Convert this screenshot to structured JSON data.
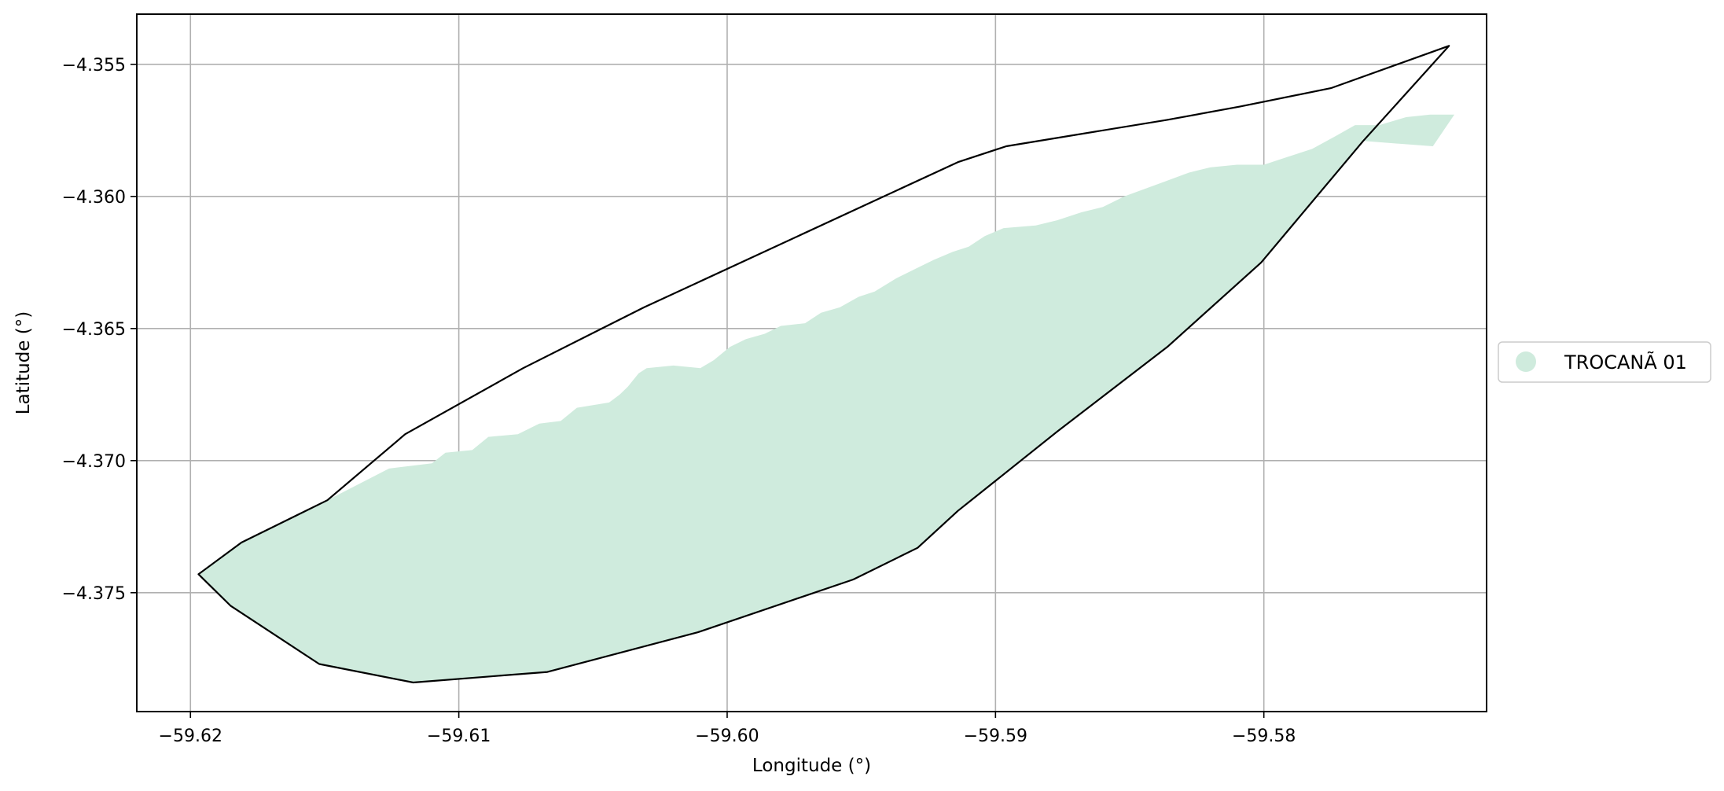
{
  "chart_data": {
    "type": "map",
    "title": "",
    "xlabel": "Longitude (°)",
    "ylabel": "Latitude (°)",
    "xlim": [
      -59.622,
      -59.5717
    ],
    "ylim": [
      -4.3795,
      -4.3531
    ],
    "grid": true,
    "x_ticks": [
      -59.62,
      -59.61,
      -59.6,
      -59.59,
      -59.58
    ],
    "x_tick_labels": [
      "−59.62",
      "−59.61",
      "−59.60",
      "−59.59",
      "−59.58"
    ],
    "y_ticks": [
      -4.355,
      -4.36,
      -4.365,
      -4.37,
      -4.375
    ],
    "y_tick_labels": [
      "−4.355",
      "−4.360",
      "−4.365",
      "−4.370",
      "−4.375"
    ],
    "legend": {
      "placement": "right",
      "entries": [
        {
          "label": "TROCANÃ 01",
          "color": "#cfebdd"
        }
      ]
    },
    "colors": {
      "fill": "#cfebdd",
      "outline": "#000000",
      "grid": "#b0b0b0",
      "frame": "#000000"
    },
    "outline_polygon": [
      [
        -59.6197,
        -4.3743
      ],
      [
        -59.6181,
        -4.3731
      ],
      [
        -59.6149,
        -4.3715
      ],
      [
        -59.612,
        -4.369
      ],
      [
        -59.6076,
        -4.3665
      ],
      [
        -59.6031,
        -4.3642
      ],
      [
        -59.5914,
        -4.3587
      ],
      [
        -59.5896,
        -4.3581
      ],
      [
        -59.5836,
        -4.3571
      ],
      [
        -59.5809,
        -4.3566
      ],
      [
        -59.5775,
        -4.3559
      ],
      [
        -59.5731,
        -4.3543
      ],
      [
        -59.5739,
        -4.3552
      ],
      [
        -59.5763,
        -4.3579
      ],
      [
        -59.5801,
        -4.3625
      ],
      [
        -59.5836,
        -4.3657
      ],
      [
        -59.5877,
        -4.3689
      ],
      [
        -59.5914,
        -4.3719
      ],
      [
        -59.5929,
        -4.3733
      ],
      [
        -59.5953,
        -4.3745
      ],
      [
        -59.6011,
        -4.3765
      ],
      [
        -59.6067,
        -4.378
      ],
      [
        -59.6092,
        -4.3782
      ],
      [
        -59.6117,
        -4.3784
      ],
      [
        -59.6152,
        -4.3777
      ],
      [
        -59.6185,
        -4.3755
      ]
    ],
    "area_polygon": [
      [
        -59.6197,
        -4.3743
      ],
      [
        -59.6181,
        -4.3731
      ],
      [
        -59.6149,
        -4.3715
      ],
      [
        -59.6126,
        -4.3703
      ],
      [
        -59.611,
        -4.3701
      ],
      [
        -59.6105,
        -4.3697
      ],
      [
        -59.6095,
        -4.3696
      ],
      [
        -59.6089,
        -4.3691
      ],
      [
        -59.6078,
        -4.369
      ],
      [
        -59.607,
        -4.3686
      ],
      [
        -59.6062,
        -4.3685
      ],
      [
        -59.6056,
        -4.368
      ],
      [
        -59.605,
        -4.3679
      ],
      [
        -59.6044,
        -4.3678
      ],
      [
        -59.604,
        -4.3675
      ],
      [
        -59.6037,
        -4.3672
      ],
      [
        -59.6033,
        -4.3667
      ],
      [
        -59.603,
        -4.3665
      ],
      [
        -59.602,
        -4.3664
      ],
      [
        -59.601,
        -4.3665
      ],
      [
        -59.6005,
        -4.3662
      ],
      [
        -59.5999,
        -4.3657
      ],
      [
        -59.5993,
        -4.3654
      ],
      [
        -59.5986,
        -4.3652
      ],
      [
        -59.598,
        -4.3649
      ],
      [
        -59.5971,
        -4.3648
      ],
      [
        -59.5965,
        -4.3644
      ],
      [
        -59.5958,
        -4.3642
      ],
      [
        -59.5951,
        -4.3638
      ],
      [
        -59.5945,
        -4.3636
      ],
      [
        -59.5937,
        -4.3631
      ],
      [
        -59.5929,
        -4.3627
      ],
      [
        -59.5923,
        -4.3624
      ],
      [
        -59.5916,
        -4.3621
      ],
      [
        -59.591,
        -4.3619
      ],
      [
        -59.5904,
        -4.3615
      ],
      [
        -59.5897,
        -4.3612
      ],
      [
        -59.5885,
        -4.3611
      ],
      [
        -59.5877,
        -4.3609
      ],
      [
        -59.5868,
        -4.3606
      ],
      [
        -59.586,
        -4.3604
      ],
      [
        -59.5852,
        -4.36
      ],
      [
        -59.5844,
        -4.3597
      ],
      [
        -59.5836,
        -4.3594
      ],
      [
        -59.5828,
        -4.3591
      ],
      [
        -59.582,
        -4.3589
      ],
      [
        -59.581,
        -4.3588
      ],
      [
        -59.58,
        -4.3588
      ],
      [
        -59.5791,
        -4.3585
      ],
      [
        -59.5782,
        -4.3582
      ],
      [
        -59.5773,
        -4.3577
      ],
      [
        -59.5766,
        -4.3573
      ],
      [
        -59.5757,
        -4.3573
      ],
      [
        -59.5747,
        -4.357
      ],
      [
        -59.5738,
        -4.3569
      ],
      [
        -59.5729,
        -4.3569
      ],
      [
        -59.5737,
        -4.3581
      ],
      [
        -59.5763,
        -4.3579
      ],
      [
        -59.5801,
        -4.3625
      ],
      [
        -59.5836,
        -4.3657
      ],
      [
        -59.5877,
        -4.3689
      ],
      [
        -59.5914,
        -4.3719
      ],
      [
        -59.5929,
        -4.3733
      ],
      [
        -59.5953,
        -4.3745
      ],
      [
        -59.6011,
        -4.3765
      ],
      [
        -59.6067,
        -4.378
      ],
      [
        -59.6092,
        -4.3782
      ],
      [
        -59.6117,
        -4.3784
      ],
      [
        -59.6152,
        -4.3777
      ],
      [
        -59.6185,
        -4.3755
      ]
    ]
  }
}
